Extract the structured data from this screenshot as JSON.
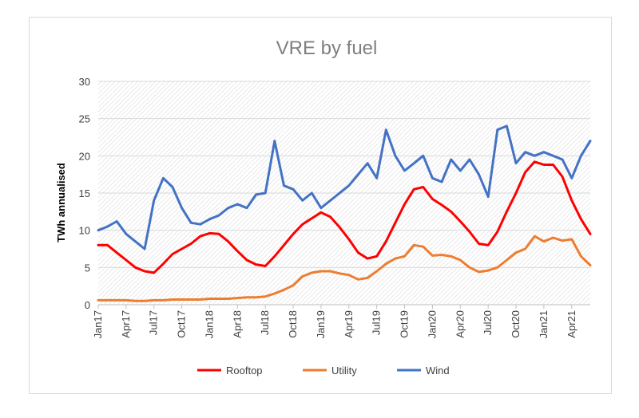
{
  "chart_data": {
    "type": "line",
    "title": "VRE by fuel",
    "ylabel": "TWh annualised",
    "xlabel": "",
    "ylim": [
      0,
      30
    ],
    "yticks": [
      0,
      5,
      10,
      15,
      20,
      25,
      30
    ],
    "xlim": [
      "2017-01",
      "2021-06"
    ],
    "xticks": [
      "Jan17",
      "Apr17",
      "Jul17",
      "Oct17",
      "Jan18",
      "Apr18",
      "Jul18",
      "Oct18",
      "Jan19",
      "Apr19",
      "Jul19",
      "Oct19",
      "Jan20",
      "Apr20",
      "Jul20",
      "Oct20",
      "Jan21",
      "Apr21"
    ],
    "x": [
      "2017-01",
      "2017-02",
      "2017-03",
      "2017-04",
      "2017-05",
      "2017-06",
      "2017-07",
      "2017-08",
      "2017-09",
      "2017-10",
      "2017-11",
      "2017-12",
      "2018-01",
      "2018-02",
      "2018-03",
      "2018-04",
      "2018-05",
      "2018-06",
      "2018-07",
      "2018-08",
      "2018-09",
      "2018-10",
      "2018-11",
      "2018-12",
      "2019-01",
      "2019-02",
      "2019-03",
      "2019-04",
      "2019-05",
      "2019-06",
      "2019-07",
      "2019-08",
      "2019-09",
      "2019-10",
      "2019-11",
      "2019-12",
      "2020-01",
      "2020-02",
      "2020-03",
      "2020-04",
      "2020-05",
      "2020-06",
      "2020-07",
      "2020-08",
      "2020-09",
      "2020-10",
      "2020-11",
      "2020-12",
      "2021-01",
      "2021-02",
      "2021-03",
      "2021-04",
      "2021-05",
      "2021-06"
    ],
    "series": [
      {
        "name": "Rooftop",
        "color": "#ff0000",
        "values": [
          8.0,
          8.0,
          7.0,
          6.0,
          5.0,
          4.5,
          4.3,
          5.5,
          6.8,
          7.5,
          8.2,
          9.2,
          9.6,
          9.5,
          8.5,
          7.2,
          6.0,
          5.4,
          5.2,
          6.5,
          8.0,
          9.5,
          10.8,
          11.6,
          12.4,
          11.8,
          10.4,
          8.8,
          7.0,
          6.2,
          6.5,
          8.5,
          11.0,
          13.5,
          15.5,
          15.8,
          14.2,
          13.4,
          12.5,
          11.2,
          9.8,
          8.2,
          8.0,
          9.8,
          12.5,
          15.0,
          17.8,
          19.2,
          18.8,
          18.8,
          17.2,
          14.0,
          11.5,
          9.5
        ]
      },
      {
        "name": "Utility",
        "color": "#ed7d31",
        "values": [
          0.6,
          0.6,
          0.6,
          0.6,
          0.5,
          0.5,
          0.6,
          0.6,
          0.7,
          0.7,
          0.7,
          0.7,
          0.8,
          0.8,
          0.8,
          0.9,
          1.0,
          1.0,
          1.1,
          1.5,
          2.0,
          2.6,
          3.8,
          4.3,
          4.5,
          4.5,
          4.2,
          4.0,
          3.4,
          3.6,
          4.5,
          5.5,
          6.2,
          6.5,
          8.0,
          7.8,
          6.6,
          6.7,
          6.5,
          6.0,
          5.0,
          4.4,
          4.6,
          5.0,
          6.0,
          7.0,
          7.5,
          9.2,
          8.5,
          9.0,
          8.6,
          8.8,
          6.5,
          5.3
        ]
      },
      {
        "name": "Wind",
        "color": "#4472c4",
        "values": [
          10.0,
          10.5,
          11.2,
          9.5,
          8.5,
          7.5,
          14.0,
          17.0,
          15.8,
          13.0,
          11.0,
          10.8,
          11.5,
          12.0,
          13.0,
          13.5,
          13.0,
          14.8,
          15.0,
          22.0,
          16.0,
          15.5,
          14.0,
          15.0,
          13.0,
          14.0,
          15.0,
          16.0,
          17.5,
          19.0,
          17.0,
          23.5,
          20.0,
          18.0,
          19.0,
          20.0,
          17.0,
          16.5,
          19.5,
          18.0,
          19.5,
          17.5,
          14.5,
          23.5,
          24.0,
          19.0,
          20.5,
          20.0,
          20.5,
          20.0,
          19.5,
          17.0,
          20.0,
          22.0
        ]
      }
    ],
    "legend": [
      "Rooftop",
      "Utility",
      "Wind"
    ],
    "legend_position": "bottom",
    "grid": "hatched-background"
  }
}
